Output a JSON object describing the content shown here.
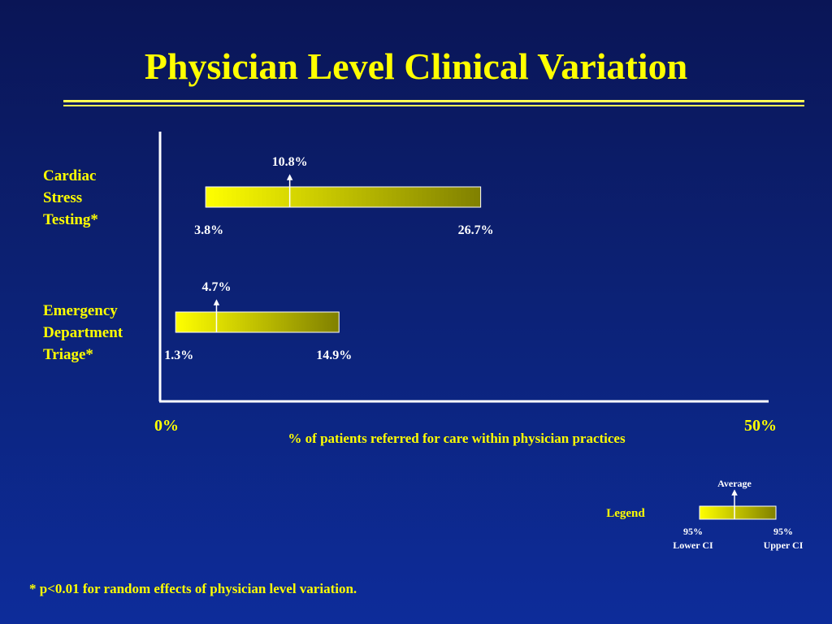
{
  "title": "Physician Level Clinical Variation",
  "colors": {
    "accent": "#ffff00",
    "bar_start": "#ffff00",
    "bar_end": "#808000",
    "axis": "#ffffff",
    "text_white": "#ffffff"
  },
  "chart_data": {
    "type": "range",
    "xlabel": "% of patients referred for care within physician practices",
    "xlim": [
      0,
      50
    ],
    "axis_labels": {
      "min": "0%",
      "max": "50%"
    },
    "series": [
      {
        "category": "Cardiac\nStress\nTesting*",
        "lower_ci": 3.8,
        "average": 10.8,
        "upper_ci": 26.7,
        "lower_label": "3.8%",
        "average_label": "10.8%",
        "upper_label": "26.7%"
      },
      {
        "category": "Emergency\nDepartment\nTriage*",
        "lower_ci": 1.3,
        "average": 4.7,
        "upper_ci": 14.9,
        "lower_label": "1.3%",
        "average_label": "4.7%",
        "upper_label": "14.9%"
      }
    ]
  },
  "legend": {
    "title": "Legend",
    "average_label": "Average",
    "lower_label_line1": "95%",
    "lower_label_line2": "Lower CI",
    "upper_label_line1": "95%",
    "upper_label_line2": "Upper CI"
  },
  "footnote": "* p<0.01 for random effects of physician level variation."
}
